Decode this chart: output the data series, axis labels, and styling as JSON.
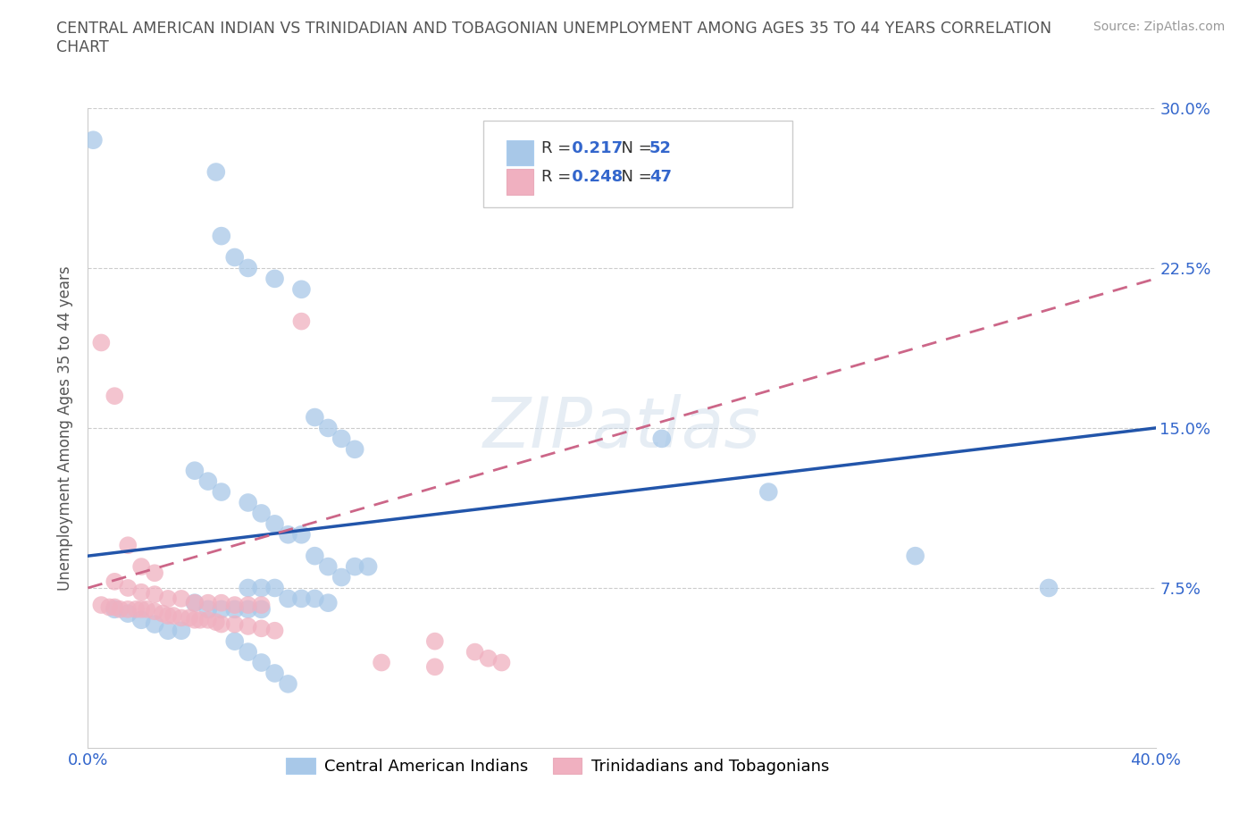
{
  "title": "CENTRAL AMERICAN INDIAN VS TRINIDADIAN AND TOBAGONIAN UNEMPLOYMENT AMONG AGES 35 TO 44 YEARS CORRELATION\nCHART",
  "source_text": "Source: ZipAtlas.com",
  "ylabel": "Unemployment Among Ages 35 to 44 years",
  "xlim": [
    0.0,
    0.4
  ],
  "ylim": [
    0.0,
    0.3
  ],
  "blue_R": 0.217,
  "blue_N": 52,
  "pink_R": 0.248,
  "pink_N": 47,
  "blue_color": "#a8c8e8",
  "pink_color": "#f0b0c0",
  "blue_line_color": "#2255aa",
  "pink_line_color": "#cc6688",
  "blue_scatter": [
    [
      0.002,
      0.285
    ],
    [
      0.048,
      0.27
    ],
    [
      0.05,
      0.24
    ],
    [
      0.055,
      0.23
    ],
    [
      0.06,
      0.225
    ],
    [
      0.07,
      0.22
    ],
    [
      0.08,
      0.215
    ],
    [
      0.085,
      0.155
    ],
    [
      0.09,
      0.15
    ],
    [
      0.095,
      0.145
    ],
    [
      0.1,
      0.14
    ],
    [
      0.04,
      0.13
    ],
    [
      0.045,
      0.125
    ],
    [
      0.05,
      0.12
    ],
    [
      0.06,
      0.115
    ],
    [
      0.065,
      0.11
    ],
    [
      0.07,
      0.105
    ],
    [
      0.075,
      0.1
    ],
    [
      0.08,
      0.1
    ],
    [
      0.085,
      0.09
    ],
    [
      0.09,
      0.085
    ],
    [
      0.095,
      0.08
    ],
    [
      0.1,
      0.085
    ],
    [
      0.105,
      0.085
    ],
    [
      0.06,
      0.075
    ],
    [
      0.065,
      0.075
    ],
    [
      0.07,
      0.075
    ],
    [
      0.075,
      0.07
    ],
    [
      0.08,
      0.07
    ],
    [
      0.085,
      0.07
    ],
    [
      0.09,
      0.068
    ],
    [
      0.04,
      0.068
    ],
    [
      0.045,
      0.065
    ],
    [
      0.05,
      0.065
    ],
    [
      0.055,
      0.065
    ],
    [
      0.06,
      0.065
    ],
    [
      0.065,
      0.065
    ],
    [
      0.01,
      0.065
    ],
    [
      0.015,
      0.063
    ],
    [
      0.02,
      0.06
    ],
    [
      0.025,
      0.058
    ],
    [
      0.03,
      0.055
    ],
    [
      0.035,
      0.055
    ],
    [
      0.055,
      0.05
    ],
    [
      0.06,
      0.045
    ],
    [
      0.065,
      0.04
    ],
    [
      0.07,
      0.035
    ],
    [
      0.075,
      0.03
    ],
    [
      0.215,
      0.145
    ],
    [
      0.255,
      0.12
    ],
    [
      0.31,
      0.09
    ],
    [
      0.36,
      0.075
    ]
  ],
  "pink_scatter": [
    [
      0.005,
      0.19
    ],
    [
      0.01,
      0.165
    ],
    [
      0.08,
      0.2
    ],
    [
      0.015,
      0.095
    ],
    [
      0.02,
      0.085
    ],
    [
      0.025,
      0.082
    ],
    [
      0.01,
      0.078
    ],
    [
      0.015,
      0.075
    ],
    [
      0.02,
      0.073
    ],
    [
      0.025,
      0.072
    ],
    [
      0.03,
      0.07
    ],
    [
      0.035,
      0.07
    ],
    [
      0.04,
      0.068
    ],
    [
      0.045,
      0.068
    ],
    [
      0.05,
      0.068
    ],
    [
      0.055,
      0.067
    ],
    [
      0.06,
      0.067
    ],
    [
      0.065,
      0.067
    ],
    [
      0.005,
      0.067
    ],
    [
      0.008,
      0.066
    ],
    [
      0.01,
      0.066
    ],
    [
      0.012,
      0.065
    ],
    [
      0.015,
      0.065
    ],
    [
      0.018,
      0.065
    ],
    [
      0.02,
      0.065
    ],
    [
      0.022,
      0.065
    ],
    [
      0.025,
      0.064
    ],
    [
      0.028,
      0.063
    ],
    [
      0.03,
      0.062
    ],
    [
      0.032,
      0.062
    ],
    [
      0.035,
      0.061
    ],
    [
      0.038,
      0.061
    ],
    [
      0.04,
      0.06
    ],
    [
      0.042,
      0.06
    ],
    [
      0.045,
      0.06
    ],
    [
      0.048,
      0.059
    ],
    [
      0.05,
      0.058
    ],
    [
      0.055,
      0.058
    ],
    [
      0.06,
      0.057
    ],
    [
      0.065,
      0.056
    ],
    [
      0.07,
      0.055
    ],
    [
      0.13,
      0.05
    ],
    [
      0.145,
      0.045
    ],
    [
      0.15,
      0.042
    ],
    [
      0.155,
      0.04
    ],
    [
      0.11,
      0.04
    ],
    [
      0.13,
      0.038
    ]
  ],
  "watermark": "ZIPatlas",
  "legend_label_blue": "Central American Indians",
  "legend_label_pink": "Trinidadians and Tobagonians"
}
